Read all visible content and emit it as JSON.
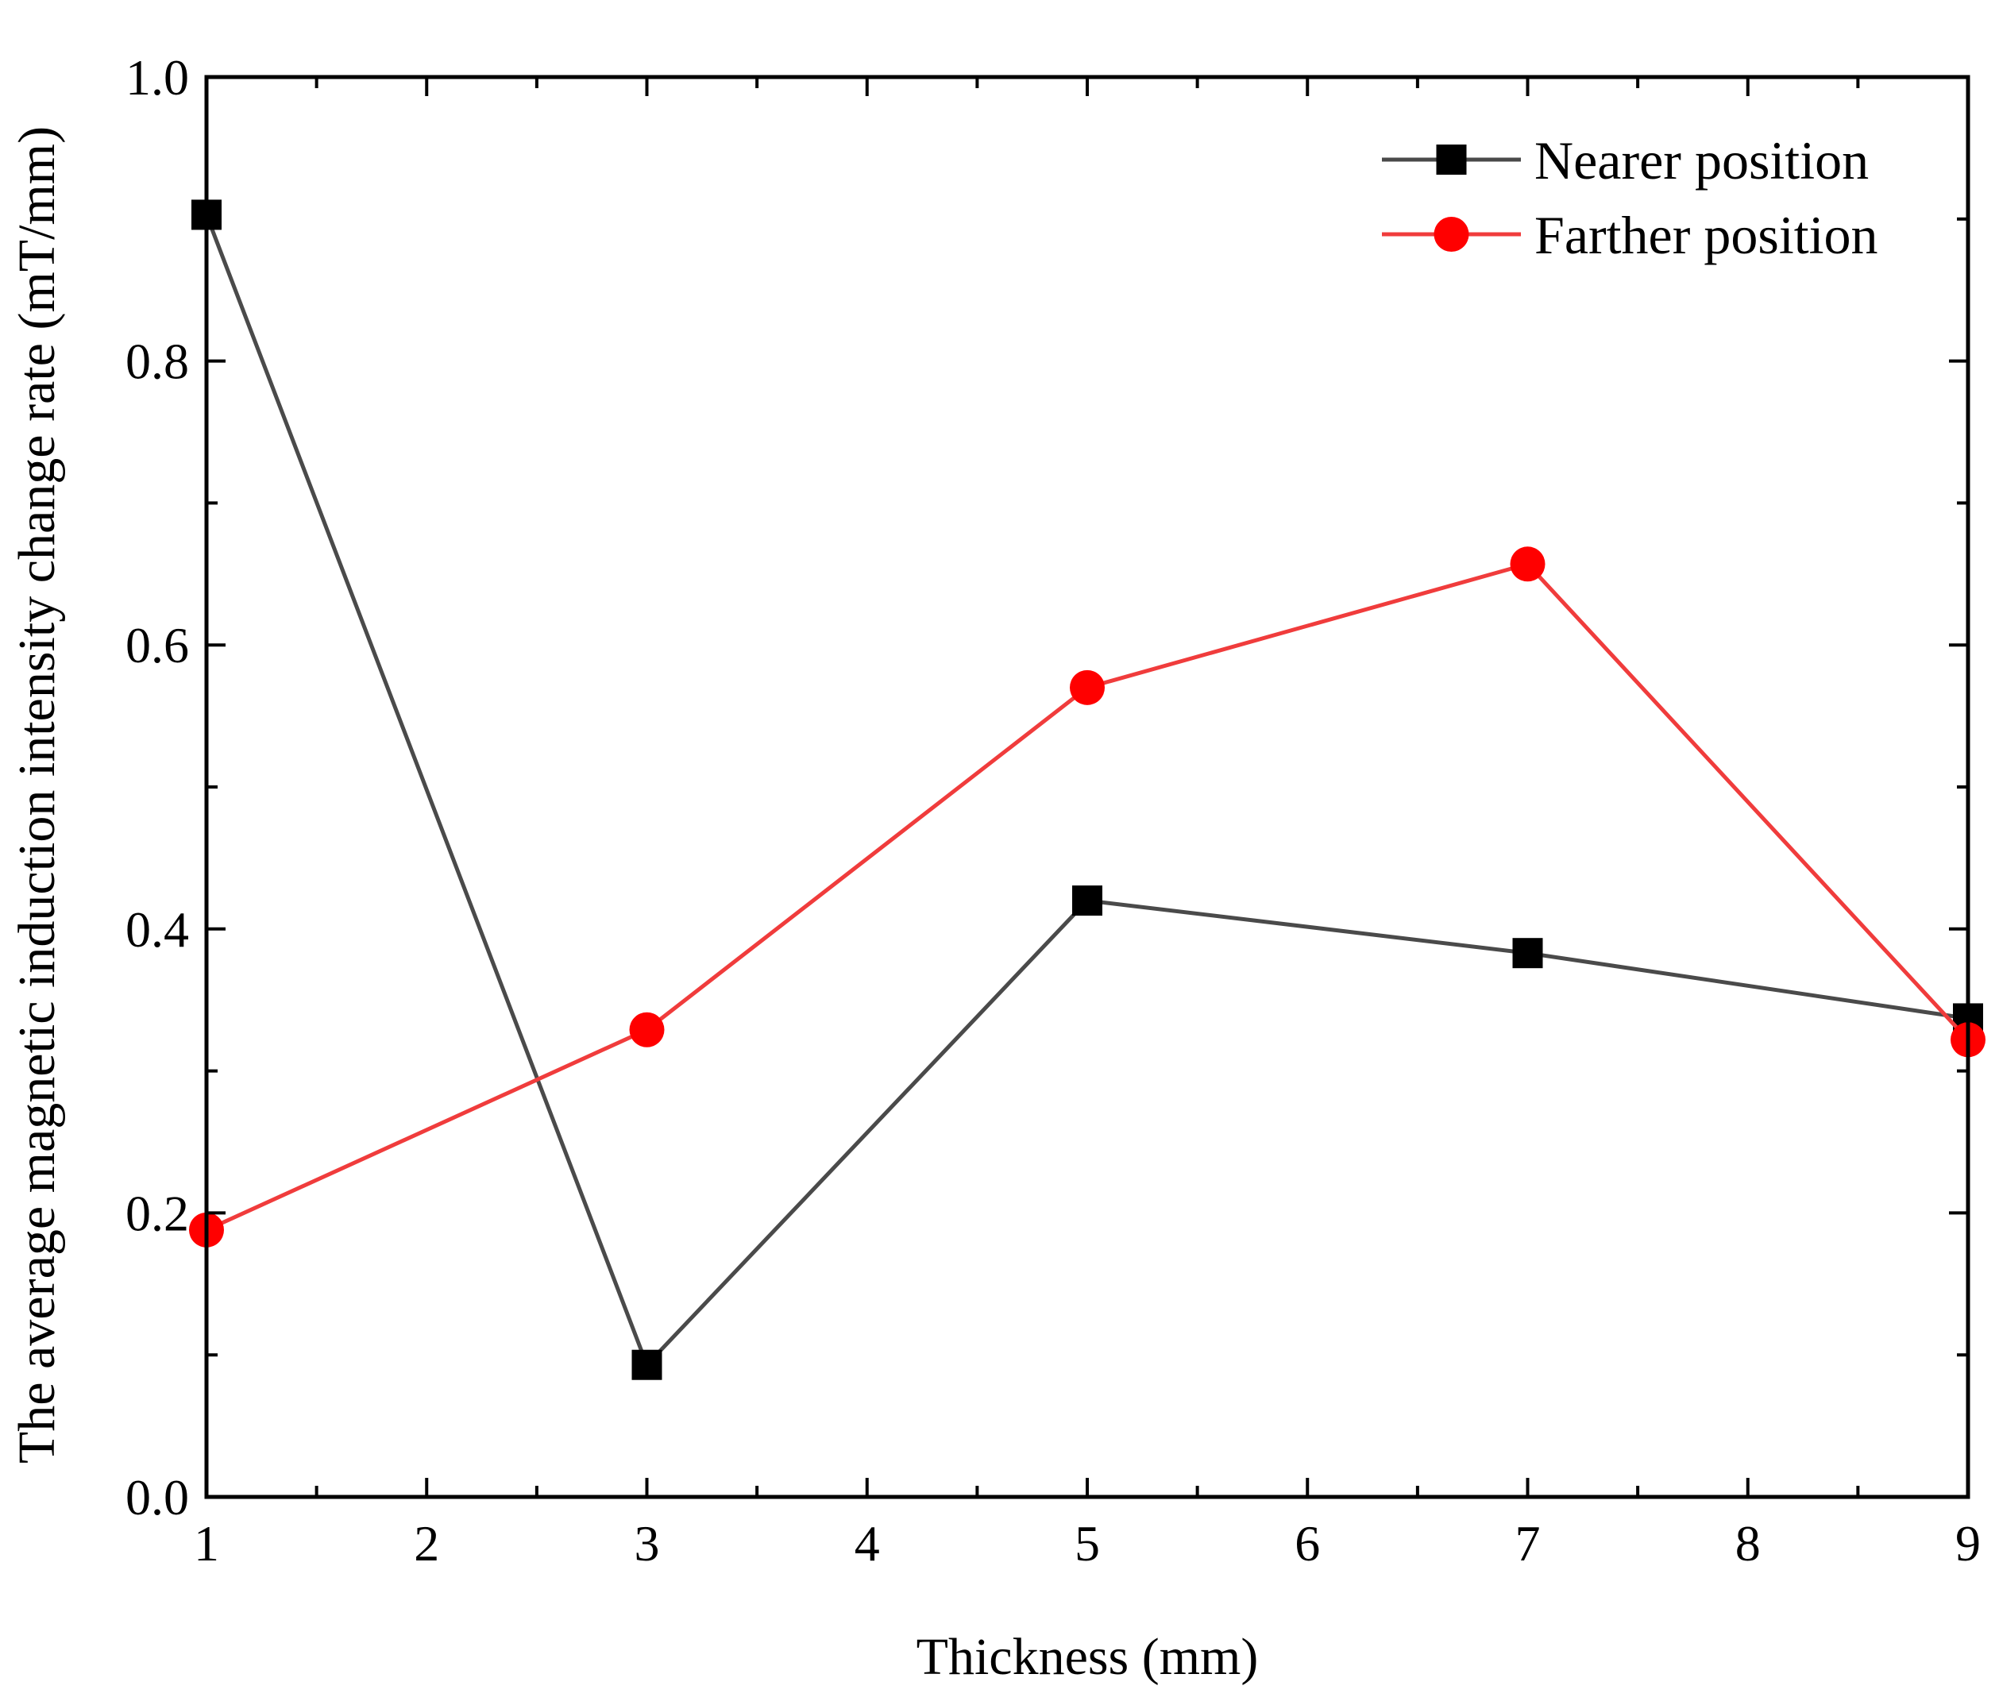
{
  "chart_data": {
    "type": "line",
    "title": "",
    "xlabel": "Thickness (mm)",
    "ylabel": "The average magnetic induction intensity change rate (mT/mm)",
    "xlim": [
      1,
      9
    ],
    "ylim": [
      0.0,
      1.0
    ],
    "xticks": [
      1,
      2,
      3,
      4,
      5,
      6,
      7,
      8,
      9
    ],
    "xtick_labels": [
      "1",
      "2",
      "3",
      "4",
      "5",
      "6",
      "7",
      "8",
      "9"
    ],
    "yticks": [
      0.0,
      0.2,
      0.4,
      0.6,
      0.8,
      1.0
    ],
    "ytick_labels": [
      "0.0",
      "0.2",
      "0.4",
      "0.6",
      "0.8",
      "1.0"
    ],
    "grid": false,
    "legend_position": "top-right",
    "series": [
      {
        "name": "Nearer position",
        "color": "#4a4a4a",
        "marker": "square",
        "marker_color": "#000000",
        "x": [
          1,
          3,
          5,
          7,
          9
        ],
        "y": [
          0.903,
          0.093,
          0.42,
          0.383,
          0.337
        ]
      },
      {
        "name": "Farther position",
        "color": "#f03c3c",
        "marker": "circle",
        "marker_color": "#ff0000",
        "x": [
          1,
          3,
          5,
          7,
          9
        ],
        "y": [
          0.188,
          0.329,
          0.57,
          0.657,
          0.322
        ]
      }
    ]
  }
}
